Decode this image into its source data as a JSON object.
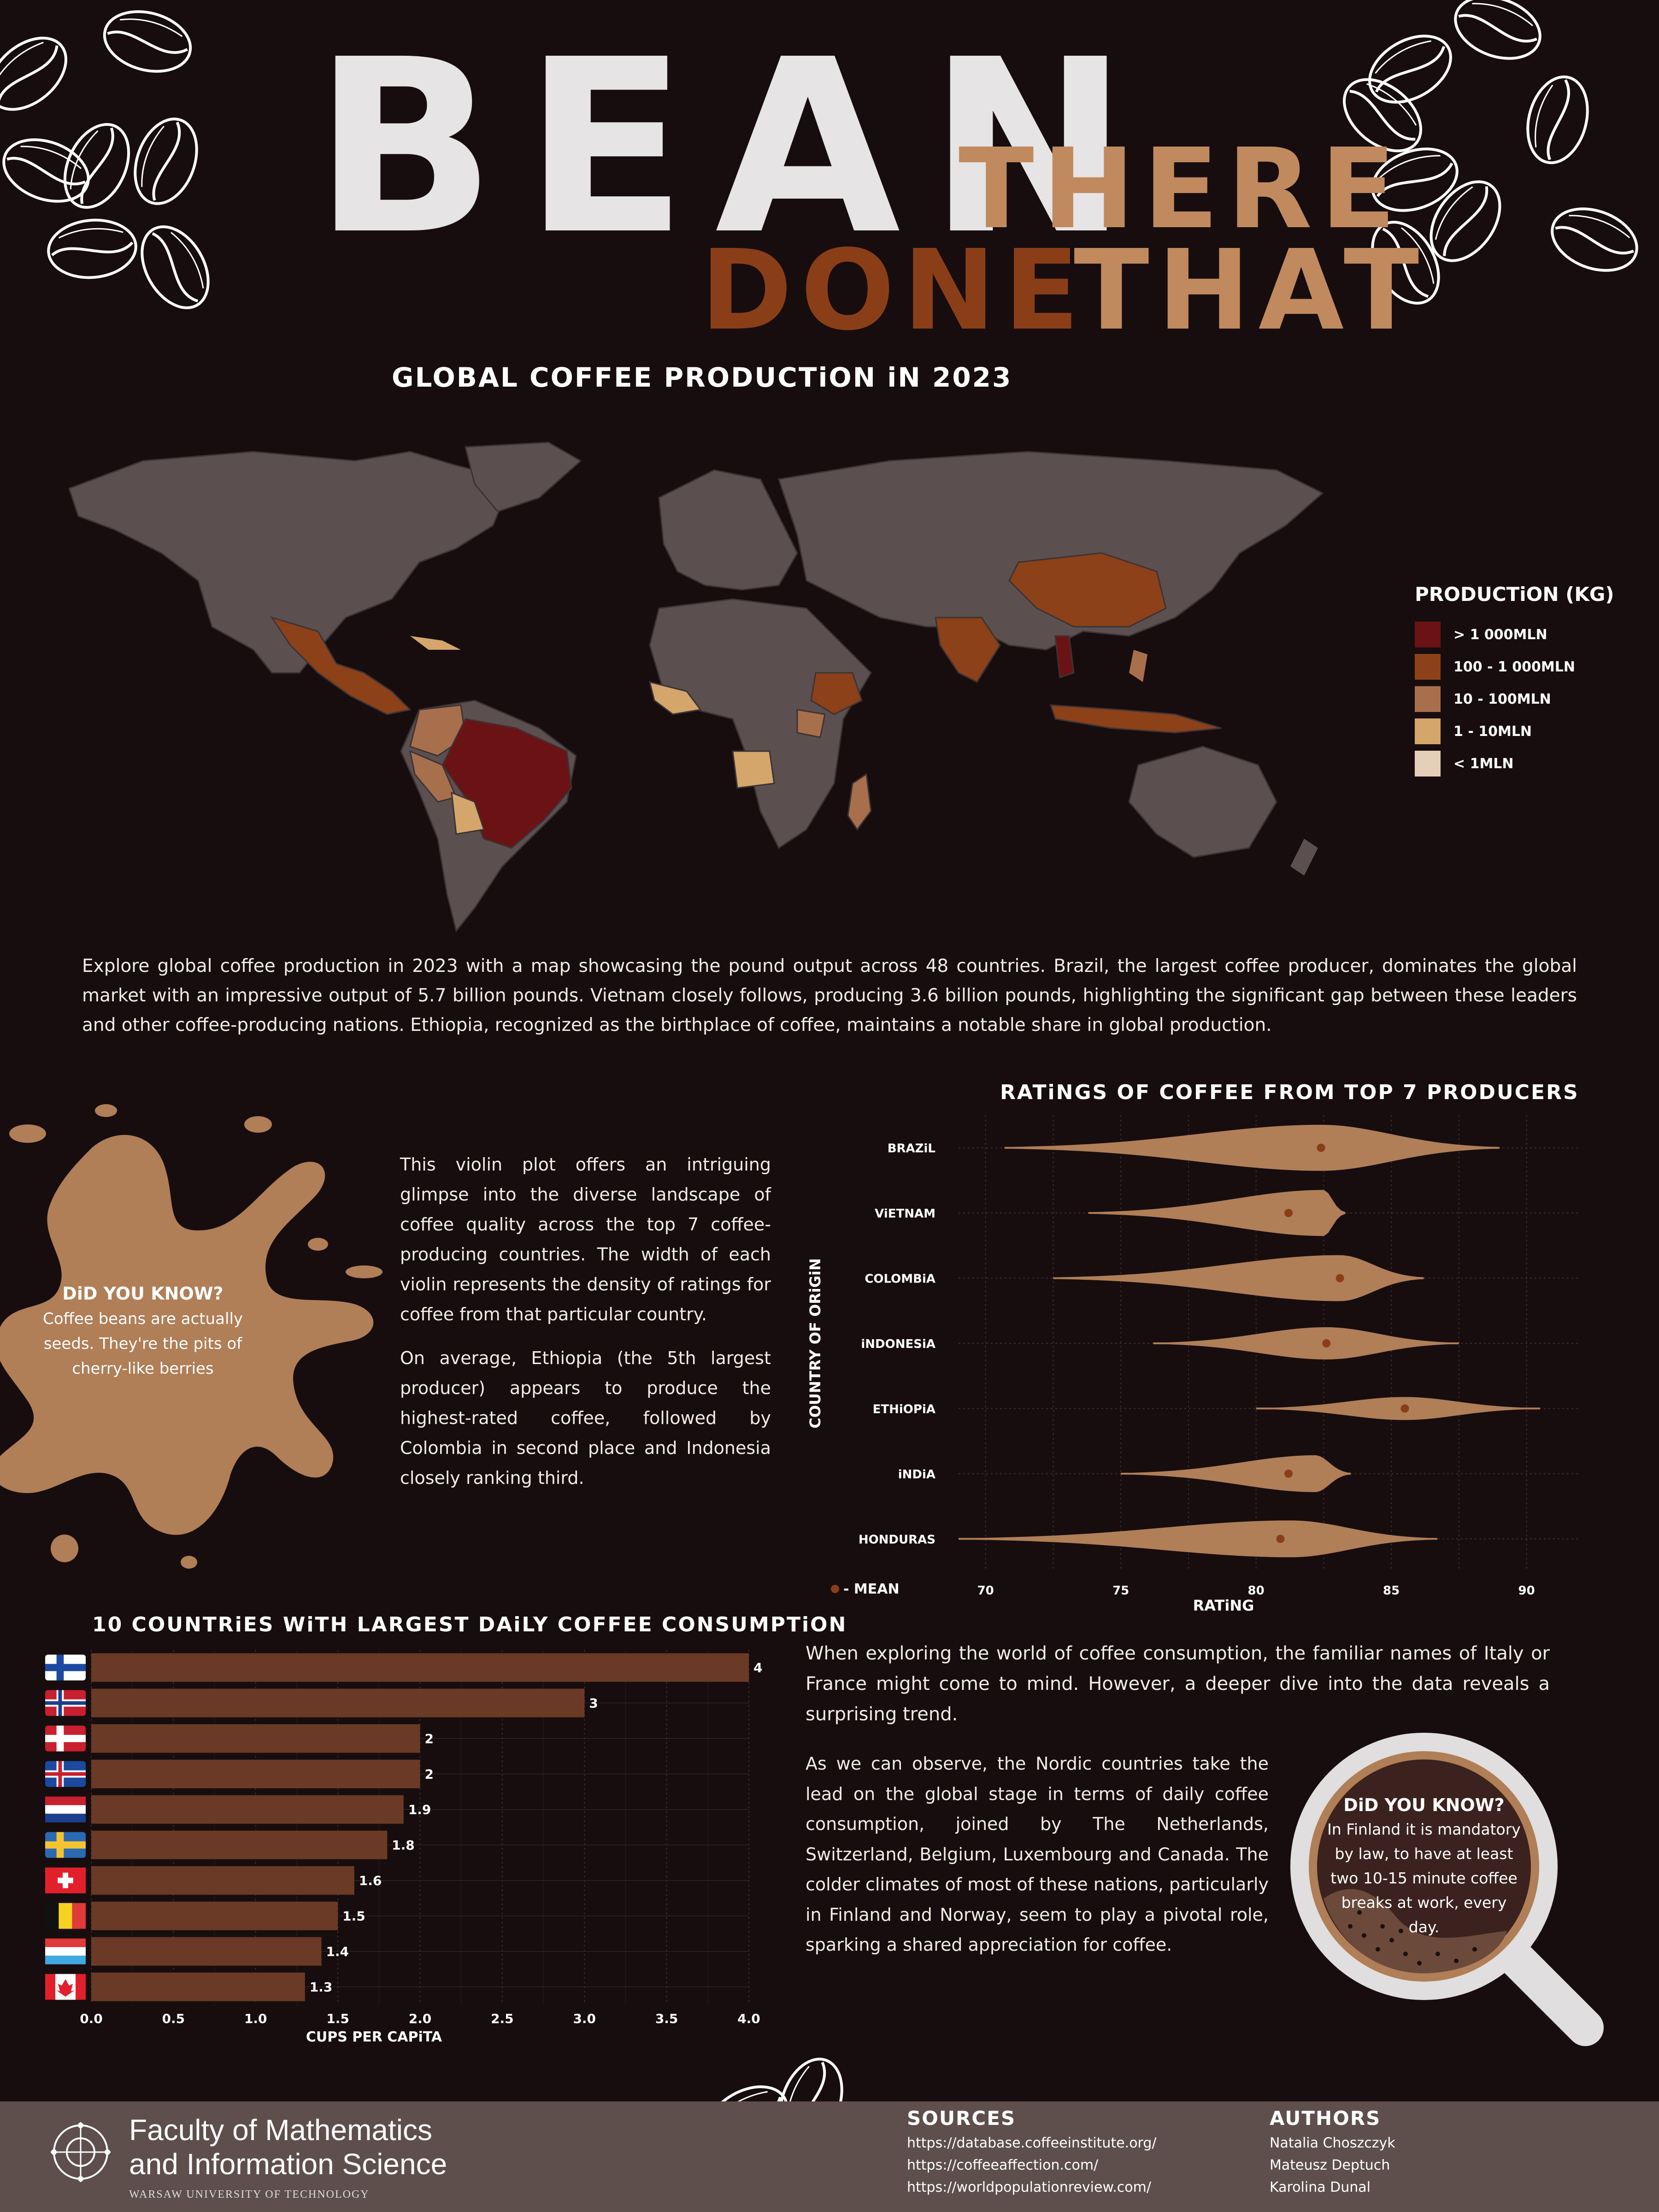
{
  "title": {
    "word1": "BEAN",
    "word2": "THERE",
    "word3": "DONE",
    "word4": "THAT"
  },
  "colors": {
    "background": "#170d0e",
    "accent_light": "#c08a5e",
    "accent_dark": "#8a3e18",
    "land": "#5c4f50"
  },
  "map": {
    "title": "GLOBAL COFFEE PRODUCTiON iN 2023",
    "legend_title": "PRODUCTiON (KG)",
    "legend": [
      {
        "label": "> 1 000MLN",
        "color": "#6b1215"
      },
      {
        "label": "100 - 1 000MLN",
        "color": "#8c4119"
      },
      {
        "label": "10 - 100MLN",
        "color": "#a86f4c"
      },
      {
        "label": "1 - 10MLN",
        "color": "#d4a66b"
      },
      {
        "label": "< 1MLN",
        "color": "#e6cfb8"
      }
    ],
    "description": "Explore global coffee production in 2023 with a map showcasing the pound output across 48 countries. Brazil, the largest coffee producer, dominates the global market with an impressive output of 5.7 billion pounds. Vietnam closely follows, producing 3.6 billion pounds, highlighting the significant gap between these leaders and other coffee-producing nations. Ethiopia, recognized as the birthplace of coffee, maintains a notable share in global production."
  },
  "did_you_know_1": {
    "heading": "DiD YOU KNOW?",
    "body": "Coffee beans are actually seeds. They're the pits of cherry-like berries"
  },
  "violin_text": {
    "p1": "This violin plot offers an intriguing glimpse into the diverse landscape of coffee quality across the top 7 coffee-producing countries. The width of each violin represents the density of ratings for coffee from that particular country.",
    "p2": "On average, Ethiopia (the 5th largest producer) appears to produce the highest-rated coffee, followed by Colombia in second place and Indonesia closely ranking third."
  },
  "chart_data": [
    {
      "type": "violin",
      "title": "RATiNGS OF COFFEE FROM TOP 7 PRODUCERS",
      "xlabel": "RATiNG",
      "ylabel": "COUNTRY OF ORiGiN",
      "xlim": [
        69,
        92
      ],
      "xticks": [
        "70",
        "75",
        "80",
        "85",
        "90"
      ],
      "legend": "- MEAN",
      "series": [
        {
          "name": "BRAZiL",
          "min": 70.7,
          "max": 89,
          "mean": 82.4,
          "mode": 82.4,
          "width": 1.0
        },
        {
          "name": "ViETNAM",
          "min": 73.8,
          "max": 83.3,
          "mean": 81.2,
          "mode": 82.5,
          "width": 1.0
        },
        {
          "name": "COLOMBiA",
          "min": 72.5,
          "max": 86.2,
          "mean": 83.1,
          "mode": 83.1,
          "width": 1.0
        },
        {
          "name": "iNDONESiA",
          "min": 76.2,
          "max": 87.5,
          "mean": 82.6,
          "mode": 82.6,
          "width": 0.7
        },
        {
          "name": "ETHiOPiA",
          "min": 80,
          "max": 90.5,
          "mean": 85.5,
          "mode": 85.5,
          "width": 0.5
        },
        {
          "name": "iNDiA",
          "min": 75,
          "max": 83.5,
          "mean": 81.2,
          "mode": 82.2,
          "width": 0.8
        },
        {
          "name": "HONDURAS",
          "min": 69,
          "max": 86.7,
          "mean": 80.9,
          "mode": 81.3,
          "width": 0.8
        }
      ]
    },
    {
      "type": "bar",
      "title": "10 COUNTRiES WiTH LARGEST DAiLY COFFEE CONSUMPTiON",
      "xlabel": "CUPS PER CAPiTA",
      "xlim": [
        0,
        4.0
      ],
      "xticks": [
        "0.0",
        "0.5",
        "1.0",
        "1.5",
        "2.0",
        "2.5",
        "3.0",
        "3.5",
        "4.0"
      ],
      "categories": [
        "Finland",
        "Norway",
        "Denmark",
        "Iceland",
        "Netherlands",
        "Sweden",
        "Switzerland",
        "Belgium",
        "Luxembourg",
        "Canada"
      ],
      "values": [
        4,
        3,
        2,
        2,
        1.9,
        1.8,
        1.6,
        1.5,
        1.4,
        1.3
      ],
      "value_labels": [
        "4",
        "3",
        "2",
        "2",
        "1.9",
        "1.8",
        "1.6",
        "1.5",
        "1.4",
        "1.3"
      ]
    }
  ],
  "consumption_text": {
    "p1": "When exploring the world of coffee consumption, the familiar names of Italy or France might come to mind. However, a deeper dive into the data reveals a surprising trend.",
    "p2": "As we can observe, the Nordic countries take the lead on the global stage in terms of daily coffee consumption, joined by The Netherlands, Switzerland, Belgium, Luxembourg and Canada. The colder climates of most of these nations, particularly in Finland and Norway, seem to play a pivotal role, sparking a shared appreciation for coffee."
  },
  "did_you_know_2": {
    "heading": "DiD YOU KNOW?",
    "body": "In Finland it is mandatory by law, to have at least two 10-15 minute coffee breaks at work, every day."
  },
  "footer": {
    "faculty_line1": "Faculty of Mathematics",
    "faculty_line2": "and Information Science",
    "university": "WARSAW UNIVERSITY OF TECHNOLOGY",
    "sources_heading": "SOURCES",
    "sources": [
      "https://database.coffeeinstitute.org/",
      "https://coffeeaffection.com/",
      "https://worldpopulationreview.com/"
    ],
    "authors_heading": "AUTHORS",
    "authors": [
      "Natalia Choszczyk",
      "Mateusz Deptuch",
      "Karolina Dunal"
    ]
  }
}
